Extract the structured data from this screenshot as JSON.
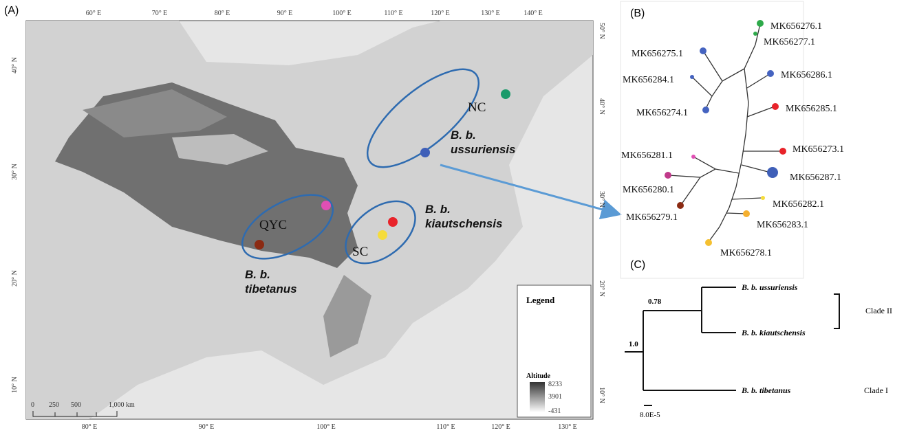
{
  "map": {
    "panel_label": "(A)",
    "longitude_top": [
      "60° E",
      "70° E",
      "80° E",
      "90° E",
      "100° E",
      "110° E",
      "120° E",
      "130° E",
      "140° E"
    ],
    "longitude_bottom": [
      "80° E",
      "90° E",
      "100° E",
      "110° E",
      "120° E",
      "130° E"
    ],
    "latitude_left": [
      "40° N",
      "30° N",
      "20° N",
      "10° N"
    ],
    "latitude_right": [
      "50° N",
      "40° N",
      "30° N",
      "20° N",
      "10° N"
    ],
    "regions": [
      "NC",
      "QYC",
      "SC"
    ],
    "subspecies": [
      "B. b. ussuriensis",
      "B. b. kiautschensis",
      "B. b. tibetanus"
    ],
    "legend": {
      "title": "Legend",
      "altitude_title": "Altitude",
      "values": [
        "8233",
        "3901",
        "-431"
      ]
    },
    "scale_bar": [
      "0",
      "250",
      "500",
      "1,000 km"
    ]
  },
  "network": {
    "panel_label": "(B)",
    "haplotypes": [
      "MK656276.1",
      "MK656277.1",
      "MK656275.1",
      "MK656286.1",
      "MK656284.1",
      "MK656285.1",
      "MK656274.1",
      "MK656273.1",
      "MK656281.1",
      "MK656287.1",
      "MK656280.1",
      "MK656282.1",
      "MK656279.1",
      "MK656283.1",
      "MK656278.1"
    ]
  },
  "tree": {
    "panel_label": "(C)",
    "taxa": [
      "B. b. ussuriensis",
      "B. b. kiautschensis",
      "B. b. tibetanus"
    ],
    "support": [
      "0.78",
      "1.0"
    ],
    "clades": [
      "Clade II",
      "Clade I"
    ],
    "scale": "8.0E-5"
  }
}
